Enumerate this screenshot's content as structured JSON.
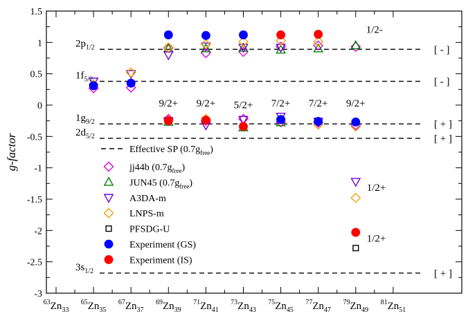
{
  "chart_data": {
    "type": "scatter",
    "title": "",
    "xlabel": "",
    "ylabel": "g-factor",
    "ylim": [
      -3,
      1.5
    ],
    "yticks": [
      "1.5",
      "1",
      "0.5",
      "0",
      "-0.5",
      "-1",
      "-1.5",
      "-2",
      "-2.5",
      "-3"
    ],
    "x_categories": [
      {
        "mass": "63",
        "sym": "Zn",
        "n": "33"
      },
      {
        "mass": "65",
        "sym": "Zn",
        "n": "35"
      },
      {
        "mass": "67",
        "sym": "Zn",
        "n": "37"
      },
      {
        "mass": "69",
        "sym": "Zn",
        "n": "39"
      },
      {
        "mass": "71",
        "sym": "Zn",
        "n": "41"
      },
      {
        "mass": "73",
        "sym": "Zn",
        "n": "43"
      },
      {
        "mass": "75",
        "sym": "Zn",
        "n": "45"
      },
      {
        "mass": "77",
        "sym": "Zn",
        "n": "47"
      },
      {
        "mass": "79",
        "sym": "Zn",
        "n": "49"
      },
      {
        "mass": "81",
        "sym": "Zn",
        "n": "51"
      }
    ],
    "sp_lines": [
      {
        "orb": "2p",
        "sub": "1/2",
        "value": 0.89,
        "parity": "[ - ]"
      },
      {
        "orb": "1f",
        "sub": "5/2",
        "value": 0.38,
        "parity": "[ - ]"
      },
      {
        "orb": "1g",
        "sub": "9/2",
        "value": -0.3,
        "parity": "[ + ]"
      },
      {
        "orb": "2d",
        "sub": "5/2",
        "value": -0.53,
        "parity": "[ + ]"
      },
      {
        "orb": "3s",
        "sub": "1/2",
        "value": -2.68,
        "parity": "[ + ]"
      }
    ],
    "spin_labels": [
      {
        "text": "9/2+",
        "cat": 3,
        "value": -0.02
      },
      {
        "text": "9/2+",
        "cat": 4,
        "value": -0.02
      },
      {
        "text": "5/2+",
        "cat": 5,
        "value": -0.05
      },
      {
        "text": "7/2+",
        "cat": 6,
        "value": -0.02
      },
      {
        "text": "7/2+",
        "cat": 7,
        "value": -0.02
      },
      {
        "text": "9/2+",
        "cat": 8,
        "value": -0.02
      },
      {
        "text": "1/2-",
        "cat": 8.5,
        "value": 1.15
      },
      {
        "text": "1/2+",
        "cat": 8.55,
        "value": -1.37
      },
      {
        "text": "1/2+",
        "cat": 8.55,
        "value": -2.18
      }
    ],
    "series": [
      {
        "name": "jj44b (0.7g",
        "sub": "free",
        "suffix": ")",
        "marker": "diamond",
        "color": "#e000e0",
        "filled": false,
        "points": [
          [
            1,
            0.27
          ],
          [
            2,
            0.28
          ],
          [
            3,
            0.91
          ],
          [
            4,
            0.83
          ],
          [
            5,
            0.85
          ],
          [
            6,
            0.93
          ],
          [
            7,
            0.95
          ],
          [
            8,
            0.93
          ],
          [
            3,
            -0.22
          ],
          [
            4,
            -0.25
          ],
          [
            5,
            -0.22
          ],
          [
            6,
            -0.27
          ],
          [
            7,
            -0.28
          ],
          [
            8,
            -0.32
          ]
        ]
      },
      {
        "name": "JUN45 (0.7g",
        "sub": "free",
        "suffix": ")",
        "marker": "triangle-up",
        "color": "#008000",
        "filled": false,
        "points": [
          [
            3,
            0.9
          ],
          [
            4,
            0.9
          ],
          [
            5,
            0.91
          ],
          [
            6,
            0.88
          ],
          [
            7,
            0.9
          ],
          [
            8,
            0.95
          ],
          [
            3,
            -0.27
          ],
          [
            5,
            -0.36
          ],
          [
            6,
            -0.28
          ]
        ]
      },
      {
        "name": "A3DA-m",
        "sub": "",
        "suffix": "",
        "marker": "triangle-down",
        "color": "#7000d0",
        "filled": false,
        "points": [
          [
            1,
            0.38
          ],
          [
            2,
            0.5
          ],
          [
            3,
            0.8
          ],
          [
            4,
            0.94
          ],
          [
            5,
            0.92
          ],
          [
            6,
            0.92
          ],
          [
            3,
            -0.25
          ],
          [
            4,
            -0.32
          ],
          [
            5,
            -0.23
          ],
          [
            6,
            -0.18
          ],
          [
            7,
            -0.26
          ],
          [
            8,
            -1.22
          ]
        ]
      },
      {
        "name": "LNPS-m",
        "sub": "",
        "suffix": "",
        "marker": "diamond",
        "color": "#f0a000",
        "filled": false,
        "points": [
          [
            1,
            0.33
          ],
          [
            2,
            0.52
          ],
          [
            3,
            0.92
          ],
          [
            4,
            0.97
          ],
          [
            5,
            1.01
          ],
          [
            6,
            1.03
          ],
          [
            7,
            1.01
          ],
          [
            3,
            -0.24
          ],
          [
            4,
            -0.22
          ],
          [
            6,
            -0.23
          ],
          [
            7,
            -0.31
          ],
          [
            8,
            -0.34
          ],
          [
            8,
            -1.48
          ]
        ]
      },
      {
        "name": "PFSDG-U",
        "sub": "",
        "suffix": "",
        "marker": "square",
        "color": "#000000",
        "filled": false,
        "points": [
          [
            8,
            -2.28
          ]
        ]
      },
      {
        "name": "Experiment (GS)",
        "sub": "",
        "suffix": "",
        "marker": "circle",
        "color": "#0000ff",
        "filled": true,
        "points": [
          [
            1,
            0.31
          ],
          [
            2,
            0.35
          ],
          [
            3,
            1.12
          ],
          [
            4,
            1.11
          ],
          [
            5,
            1.12
          ],
          [
            6,
            -0.23
          ],
          [
            7,
            -0.26
          ],
          [
            8,
            -0.27
          ]
        ]
      },
      {
        "name": "Experiment (IS)",
        "sub": "",
        "suffix": "",
        "marker": "circle",
        "color": "#ff0000",
        "filled": true,
        "points": [
          [
            3,
            -0.25
          ],
          [
            4,
            -0.24
          ],
          [
            5,
            -0.34
          ],
          [
            6,
            1.12
          ],
          [
            7,
            1.13
          ],
          [
            8,
            -2.03
          ]
        ]
      }
    ],
    "legend": {
      "placement": "center-left",
      "sp_entry": {
        "text": "Effective SP (0.7g",
        "sub": "free",
        "suffix": ")"
      }
    }
  }
}
